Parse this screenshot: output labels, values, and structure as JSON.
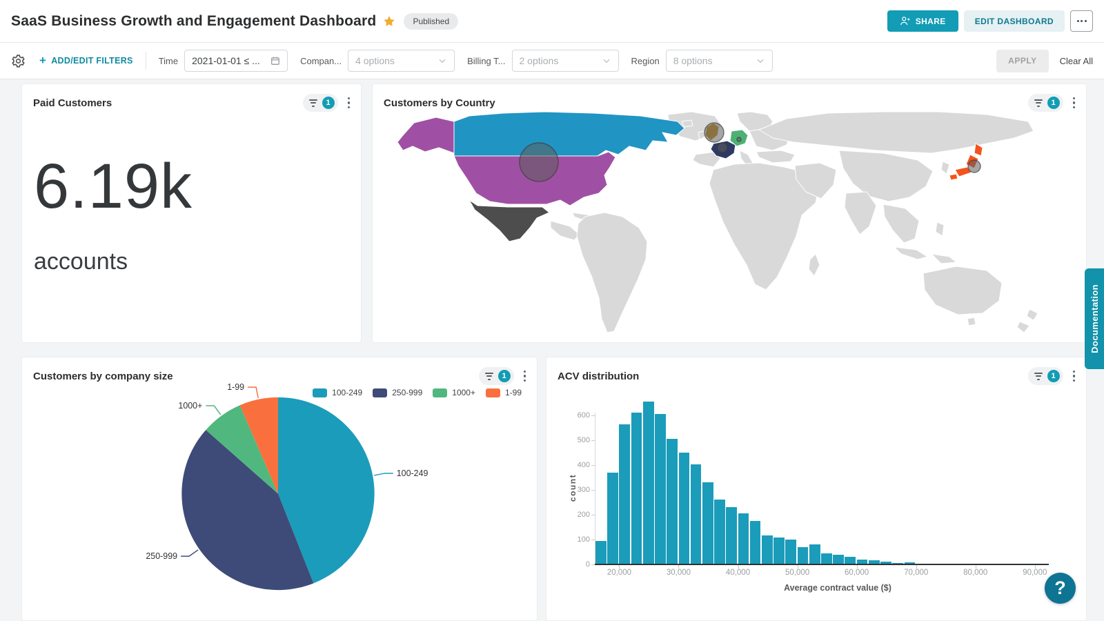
{
  "header": {
    "title": "SaaS Business Growth and Engagement Dashboard",
    "status_badge": "Published",
    "share_label": "SHARE",
    "edit_label": "EDIT DASHBOARD"
  },
  "filter_bar": {
    "add_edit_label": "ADD/EDIT FILTERS",
    "filters": [
      {
        "label": "Time",
        "value": "2021-01-01 ≤ ...",
        "type": "date"
      },
      {
        "label": "Compan...",
        "value": "4 options",
        "type": "select"
      },
      {
        "label": "Billing T...",
        "value": "2 options",
        "type": "select"
      },
      {
        "label": "Region",
        "value": "8 options",
        "type": "select"
      }
    ],
    "apply_label": "APPLY",
    "clear_label": "Clear All"
  },
  "widgets": {
    "kpi": {
      "title": "Paid Customers",
      "filter_count": "1",
      "value": "6.19k",
      "unit": "accounts"
    },
    "map": {
      "title": "Customers by Country",
      "filter_count": "1"
    },
    "pie": {
      "title": "Customers by company size",
      "filter_count": "1"
    },
    "hist": {
      "title": "ACV distribution",
      "filter_count": "1"
    }
  },
  "chart_data": [
    {
      "id": "customers_by_country",
      "type": "map",
      "title": "Customers by Country",
      "land_color": "#d9d9d9",
      "border_color": "#ffffff",
      "countries": [
        {
          "name": "Canada",
          "key": "canada",
          "color": "#2095c3"
        },
        {
          "name": "United States",
          "key": "usa",
          "color": "#a050a4"
        },
        {
          "name": "Mexico",
          "key": "mexico",
          "color": "#4d4d4d"
        },
        {
          "name": "United Kingdom",
          "key": "uk",
          "color": "#c28f1e"
        },
        {
          "name": "France",
          "key": "france",
          "color": "#2e3a64"
        },
        {
          "name": "Germany",
          "key": "germany",
          "color": "#4db074"
        },
        {
          "name": "Japan",
          "key": "japan",
          "color": "#f5531d"
        }
      ],
      "bubbles": [
        {
          "country": "United States",
          "r": 28
        },
        {
          "country": "United Kingdom",
          "r": 14
        },
        {
          "country": "France",
          "r": 7
        },
        {
          "country": "Germany",
          "r": 3
        },
        {
          "country": "Japan",
          "r": 9
        }
      ]
    },
    {
      "id": "customers_by_company_size",
      "type": "pie",
      "title": "Customers by company size",
      "labels": [
        "100-249",
        "250-999",
        "1000+",
        "1-99"
      ],
      "values_pct": [
        44,
        42.5,
        7,
        6.5
      ],
      "colors": [
        "#1b9cba",
        "#3e4b78",
        "#50b87e",
        "#f9703e"
      ],
      "legend_position": "top-right"
    },
    {
      "id": "acv_distribution",
      "type": "histogram",
      "title": "ACV distribution",
      "xlabel": "Average contract value ($)",
      "ylabel": "count",
      "bar_color": "#1b9cba",
      "bin_start": 16000,
      "bin_width": 2000,
      "counts": [
        95,
        370,
        563,
        610,
        655,
        605,
        507,
        450,
        402,
        330,
        262,
        230,
        207,
        175,
        118,
        108,
        100,
        70,
        80,
        45,
        40,
        30,
        20,
        17,
        12,
        5,
        8,
        2,
        1,
        3,
        1
      ],
      "x_ticks": [
        "20,000",
        "30,000",
        "40,000",
        "50,000",
        "60,000",
        "70,000",
        "80,000",
        "90,000"
      ],
      "x_tick_values": [
        20000,
        30000,
        40000,
        50000,
        60000,
        70000,
        80000,
        90000
      ],
      "y_ticks": [
        0,
        100,
        200,
        300,
        400,
        500,
        600
      ],
      "xlim": [
        16000,
        92000
      ],
      "ylim": [
        0,
        680
      ],
      "grid": false
    }
  ],
  "doc_tab": {
    "label": "Documentation"
  },
  "help": {
    "label": "?"
  }
}
